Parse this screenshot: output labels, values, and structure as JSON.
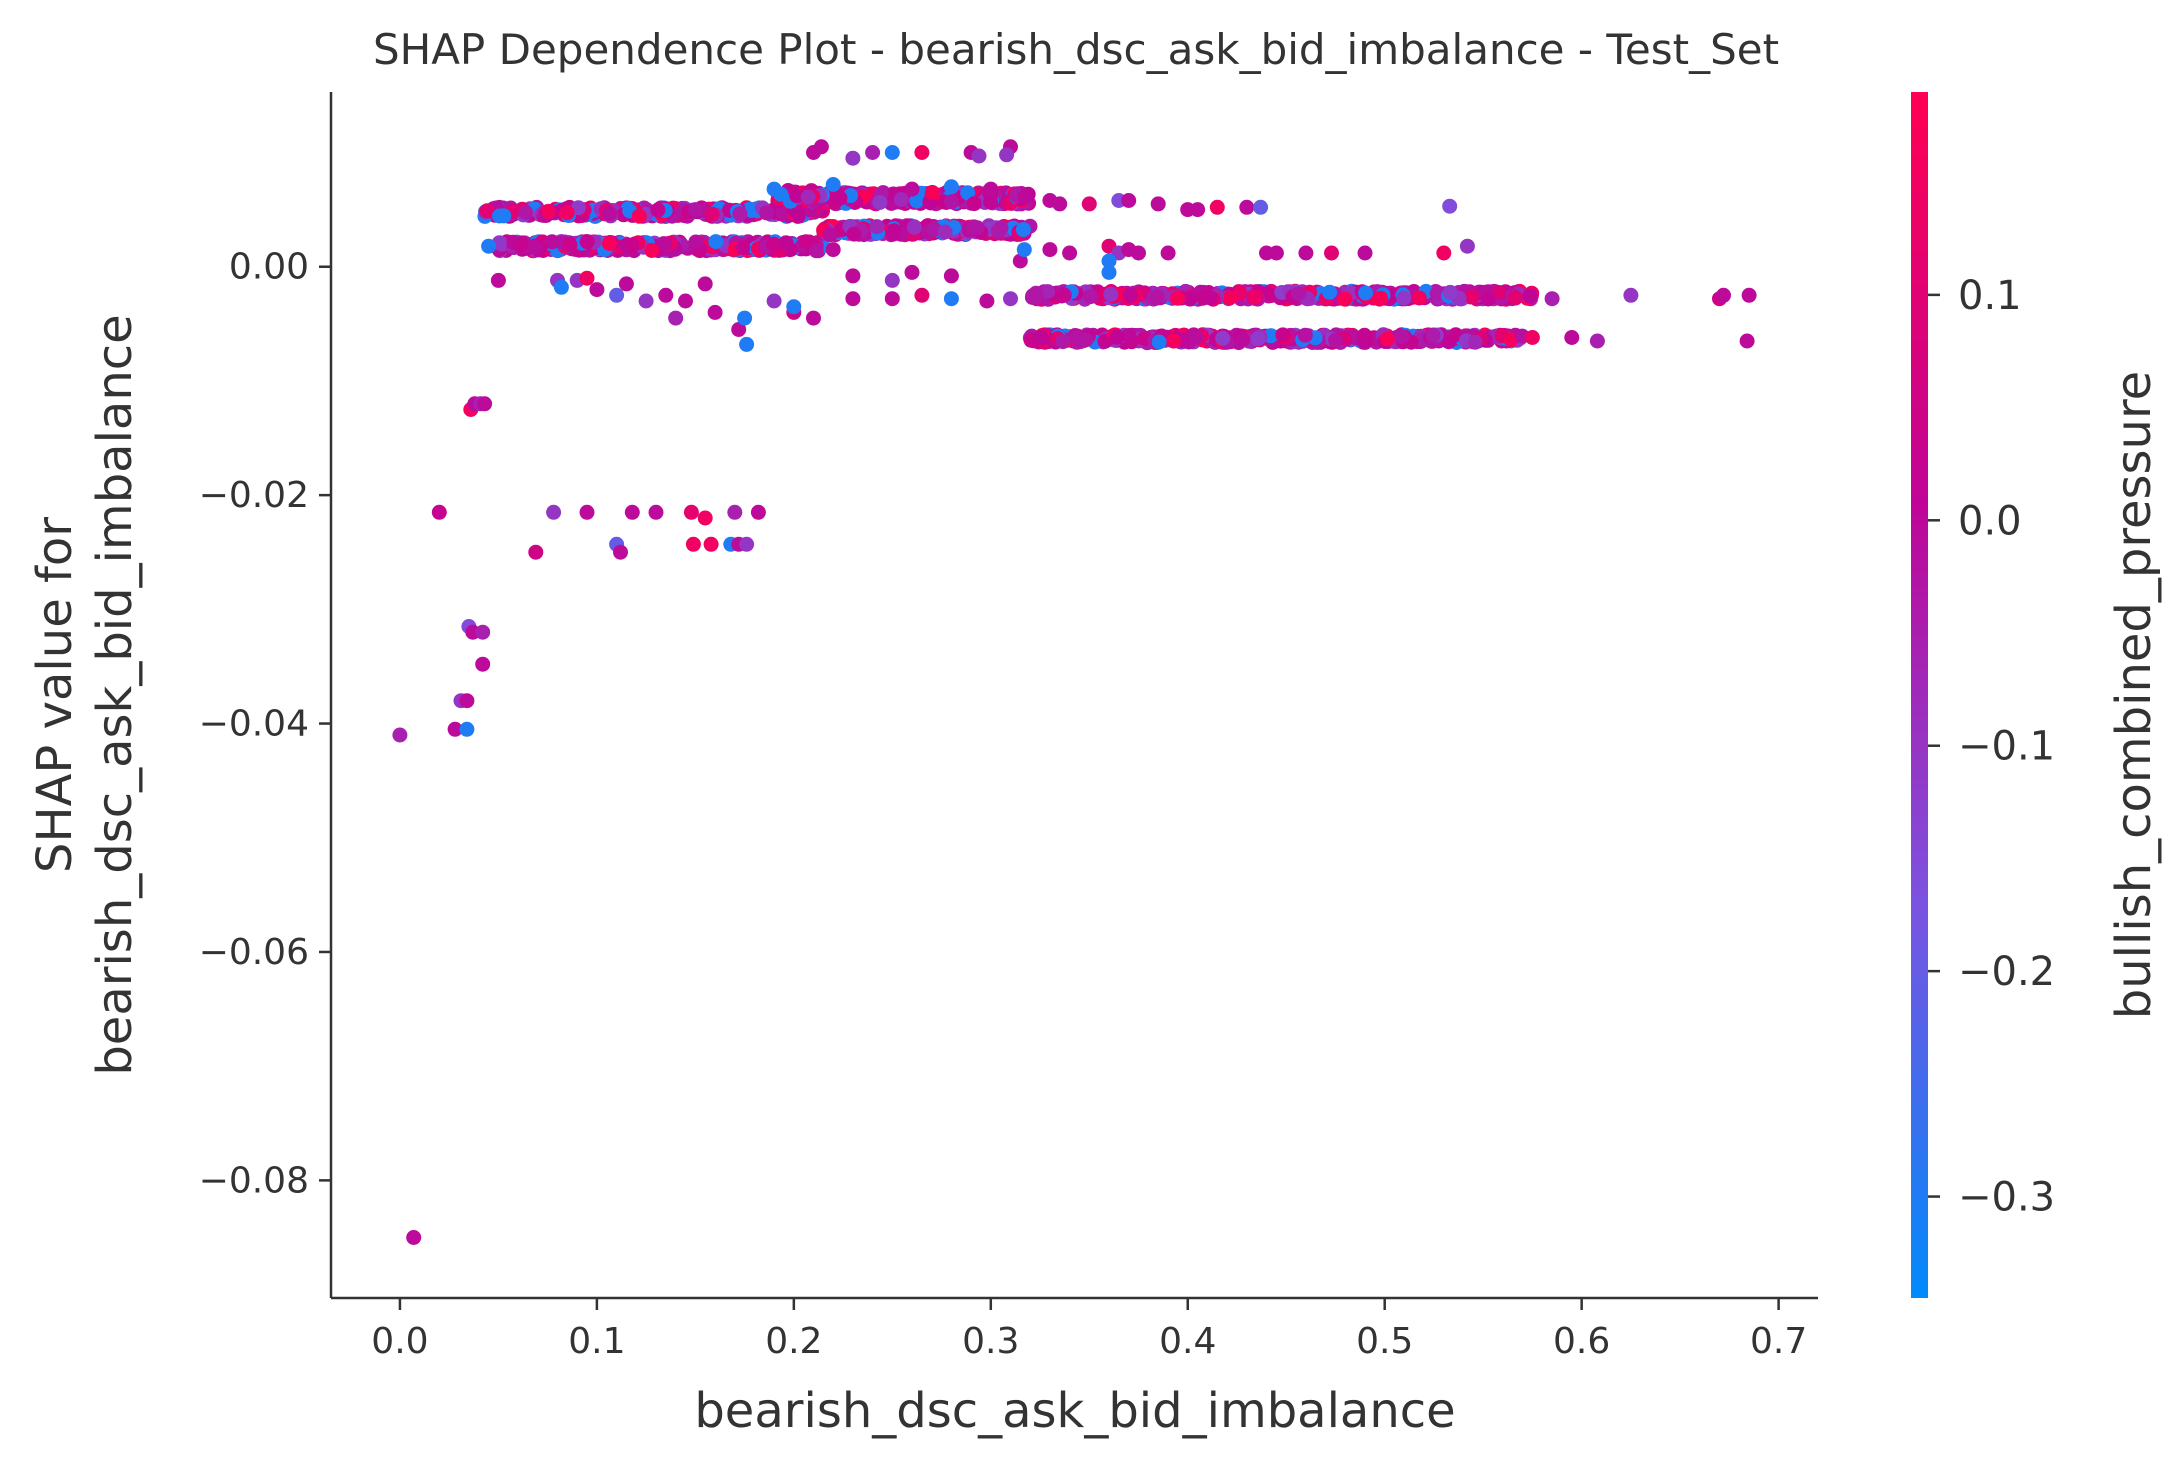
{
  "chart_data": {
    "type": "scatter",
    "title": "SHAP Dependence Plot - bearish_dsc_ask_bid_imbalance - Test_Set",
    "xlabel": "bearish_dsc_ask_bid_imbalance",
    "ylabel_lines": [
      "SHAP value for",
      "bearish_dsc_ask_bid_imbalance"
    ],
    "xlim": [
      -0.035,
      0.72
    ],
    "ylim": [
      -0.0903,
      0.0153
    ],
    "xticks": [
      0.0,
      0.1,
      0.2,
      0.3,
      0.4,
      0.5,
      0.6,
      0.7
    ],
    "xtick_labels": [
      "0.0",
      "0.1",
      "0.2",
      "0.3",
      "0.4",
      "0.5",
      "0.6",
      "0.7"
    ],
    "yticks": [
      0.0,
      -0.02,
      -0.04,
      -0.06,
      -0.08
    ],
    "ytick_labels": [
      "0.00",
      "−0.02",
      "−0.04",
      "−0.06",
      "−0.08"
    ],
    "grid": false,
    "colorbar": {
      "label": "bullish_combined_pressure",
      "range": [
        -0.345,
        0.19
      ],
      "ticks": [
        0.1,
        0.0,
        -0.1,
        -0.2,
        -0.3
      ],
      "tick_labels": [
        "0.1",
        "0.0",
        "−0.1",
        "−0.2",
        "−0.3"
      ],
      "colors": [
        "#008afb",
        "#7c52e0",
        "#c00596",
        "#ff0052"
      ]
    },
    "points": [
      [
        0.0,
        -0.041,
        -0.05
      ],
      [
        0.007,
        -0.085,
        0.0
      ],
      [
        0.02,
        -0.0215,
        0.03
      ],
      [
        0.028,
        -0.0405,
        0.0
      ],
      [
        0.031,
        -0.038,
        -0.1
      ],
      [
        0.034,
        -0.038,
        0.0
      ],
      [
        0.034,
        -0.0405,
        -0.3
      ],
      [
        0.035,
        -0.0315,
        -0.15
      ],
      [
        0.037,
        -0.032,
        0.0
      ],
      [
        0.042,
        -0.032,
        -0.05
      ],
      [
        0.042,
        -0.0348,
        0.0
      ],
      [
        0.036,
        -0.0125,
        0.15
      ],
      [
        0.038,
        -0.012,
        0.0
      ],
      [
        0.041,
        -0.012,
        -0.05
      ],
      [
        0.043,
        -0.012,
        0.0
      ],
      [
        0.069,
        -0.025,
        0.05
      ],
      [
        0.078,
        -0.0215,
        -0.1
      ],
      [
        0.095,
        -0.0215,
        0.0
      ],
      [
        0.11,
        -0.0243,
        -0.2
      ],
      [
        0.112,
        -0.025,
        0.0
      ],
      [
        0.118,
        -0.0215,
        0.0
      ],
      [
        0.13,
        -0.0215,
        0.0
      ],
      [
        0.148,
        -0.0215,
        0.12
      ],
      [
        0.149,
        -0.0243,
        0.15
      ],
      [
        0.155,
        -0.022,
        0.15
      ],
      [
        0.158,
        -0.0243,
        0.15
      ],
      [
        0.168,
        -0.0243,
        -0.3
      ],
      [
        0.172,
        -0.0243,
        0.0
      ],
      [
        0.176,
        -0.0243,
        -0.1
      ],
      [
        0.182,
        -0.0215,
        0.0
      ],
      [
        0.17,
        -0.0215,
        -0.05
      ],
      [
        0.045,
        0.0018,
        -0.3
      ],
      [
        0.05,
        -0.0012,
        0.0
      ],
      [
        0.08,
        -0.0012,
        -0.1
      ],
      [
        0.082,
        -0.0018,
        -0.3
      ],
      [
        0.09,
        -0.0012,
        -0.1
      ],
      [
        0.095,
        -0.001,
        0.15
      ],
      [
        0.1,
        -0.002,
        0.0
      ],
      [
        0.11,
        -0.0025,
        -0.2
      ],
      [
        0.115,
        -0.0015,
        0.0
      ],
      [
        0.125,
        -0.003,
        -0.1
      ],
      [
        0.135,
        -0.0025,
        0.0
      ],
      [
        0.14,
        -0.0045,
        -0.05
      ],
      [
        0.145,
        -0.003,
        0.0
      ],
      [
        0.155,
        -0.0015,
        0.0
      ],
      [
        0.16,
        -0.004,
        0.0
      ],
      [
        0.172,
        -0.0055,
        0.0
      ],
      [
        0.175,
        -0.0045,
        -0.3
      ],
      [
        0.176,
        -0.0068,
        -0.3
      ],
      [
        0.19,
        -0.003,
        -0.1
      ],
      [
        0.2,
        -0.004,
        0.05
      ],
      [
        0.21,
        -0.0045,
        0.0
      ],
      [
        0.2,
        -0.0035,
        -0.3
      ],
      [
        0.23,
        -0.0028,
        0.0
      ],
      [
        0.25,
        -0.0028,
        0.0
      ],
      [
        0.265,
        -0.0025,
        0.1
      ],
      [
        0.28,
        -0.0028,
        -0.3
      ],
      [
        0.298,
        -0.003,
        0.0
      ],
      [
        0.31,
        -0.0028,
        -0.1
      ],
      [
        0.25,
        -0.0012,
        -0.1
      ],
      [
        0.26,
        -0.0005,
        0.0
      ],
      [
        0.28,
        -0.0008,
        0.0
      ],
      [
        0.22,
        0.0015,
        0.0
      ],
      [
        0.23,
        -0.0008,
        0.0
      ],
      [
        0.315,
        0.0005,
        0.0
      ],
      [
        0.33,
        0.0015,
        0.0
      ],
      [
        0.34,
        0.0012,
        0.0
      ],
      [
        0.36,
        0.0018,
        0.1
      ],
      [
        0.365,
        0.0012,
        -0.1
      ],
      [
        0.37,
        0.0015,
        0.0
      ],
      [
        0.375,
        0.0012,
        0.0
      ],
      [
        0.39,
        0.0012,
        0.0
      ],
      [
        0.36,
        0.0005,
        -0.3
      ],
      [
        0.36,
        -0.0005,
        -0.3
      ],
      [
        0.317,
        0.0015,
        -0.3
      ],
      [
        0.33,
        0.0058,
        0.0
      ],
      [
        0.335,
        0.0055,
        0.0
      ],
      [
        0.35,
        0.0055,
        0.1
      ],
      [
        0.365,
        0.0058,
        -0.15
      ],
      [
        0.37,
        0.0058,
        0.0
      ],
      [
        0.385,
        0.0055,
        0.0
      ],
      [
        0.4,
        0.005,
        0.0
      ],
      [
        0.405,
        0.005,
        0.0
      ],
      [
        0.415,
        0.0052,
        0.15
      ],
      [
        0.43,
        0.0052,
        0.0
      ],
      [
        0.437,
        0.0052,
        -0.2
      ],
      [
        0.44,
        0.0012,
        0.0
      ],
      [
        0.445,
        0.0012,
        0.0
      ],
      [
        0.46,
        0.0012,
        0.0
      ],
      [
        0.473,
        0.0012,
        0.1
      ],
      [
        0.49,
        0.0012,
        0.0
      ],
      [
        0.53,
        0.0012,
        0.15
      ],
      [
        0.533,
        0.0053,
        -0.15
      ],
      [
        0.542,
        0.0018,
        -0.1
      ],
      [
        0.625,
        -0.0025,
        -0.1
      ],
      [
        0.67,
        -0.0028,
        0.05
      ],
      [
        0.672,
        -0.0025,
        0.0
      ],
      [
        0.685,
        -0.0025,
        0.0
      ],
      [
        0.684,
        -0.0065,
        0.0
      ],
      [
        0.608,
        -0.0065,
        -0.05
      ],
      [
        0.595,
        -0.0062,
        0.0
      ],
      [
        0.575,
        -0.0062,
        0.15
      ],
      [
        0.585,
        -0.0028,
        -0.05
      ],
      [
        0.23,
        0.0095,
        -0.1
      ],
      [
        0.21,
        0.01,
        0.0
      ],
      [
        0.214,
        0.0105,
        0.0
      ],
      [
        0.24,
        0.01,
        -0.05
      ],
      [
        0.25,
        0.01,
        -0.3
      ],
      [
        0.265,
        0.01,
        0.15
      ],
      [
        0.29,
        0.01,
        0.0
      ],
      [
        0.31,
        0.0105,
        0.0
      ],
      [
        0.308,
        0.0098,
        -0.1
      ],
      [
        0.294,
        0.0097,
        -0.1
      ],
      [
        0.19,
        0.0068,
        -0.3
      ],
      [
        0.22,
        0.0072,
        -0.3
      ],
      [
        0.26,
        0.0068,
        0.0
      ],
      [
        0.28,
        0.007,
        -0.3
      ],
      [
        0.3,
        0.0068,
        0.0
      ]
    ],
    "bands": [
      {
        "x0": 0.043,
        "x1": 0.215,
        "y": 0.0048,
        "jitter": 0.0004,
        "n": 320
      },
      {
        "x0": 0.05,
        "x1": 0.215,
        "y": 0.0018,
        "jitter": 0.0004,
        "n": 320
      },
      {
        "x0": 0.215,
        "x1": 0.32,
        "y": 0.006,
        "jitter": 0.0005,
        "n": 260
      },
      {
        "x0": 0.215,
        "x1": 0.32,
        "y": 0.0032,
        "jitter": 0.0004,
        "n": 230
      },
      {
        "x0": 0.19,
        "x1": 0.215,
        "y": 0.0062,
        "jitter": 0.0005,
        "n": 40
      },
      {
        "x0": 0.32,
        "x1": 0.575,
        "y": -0.0025,
        "jitter": 0.00035,
        "n": 420
      },
      {
        "x0": 0.32,
        "x1": 0.57,
        "y": -0.0063,
        "jitter": 0.00035,
        "n": 420
      }
    ]
  }
}
